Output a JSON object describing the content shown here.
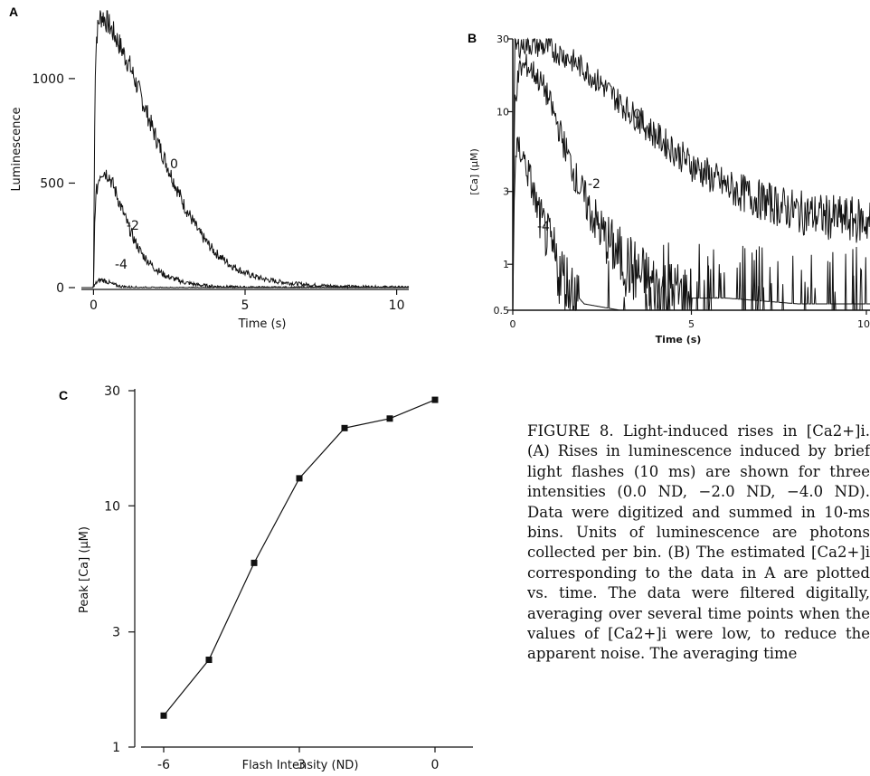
{
  "figure": {
    "caption": "FIGURE 8. Light-induced rises in [Ca2+]i. (A) Rises in luminescence induced by brief light flashes (10 ms) are shown for three intensities (0.0 ND, −2.0 ND, −4.0 ND). Data were digitized and summed in 10-ms bins. Units of luminescence are photons collected per bin. (B) The estimated [Ca2+]i corresponding to the data in A are plotted vs. time. The data were filtered digitally, averaging over several time points when the values of [Ca2+]i were low, to reduce the apparent noise. The averaging time"
  },
  "chart_data": [
    {
      "panel": "A",
      "type": "line",
      "xlabel": "Time (s)",
      "ylabel": "Luminescence",
      "xlim": [
        -0.4,
        10.4
      ],
      "ylim": [
        0,
        1350
      ],
      "xticks": [
        0,
        5,
        10
      ],
      "yticks": [
        0,
        500,
        1000
      ],
      "grid": false,
      "legend": "none",
      "series": [
        {
          "label": "0",
          "x": [
            0,
            0.05,
            0.1,
            0.2,
            0.3,
            0.5,
            0.8,
            1.2,
            1.6,
            2.0,
            2.5,
            3.0,
            3.5,
            4.0,
            4.5,
            5.0,
            5.5,
            6.0,
            7.0,
            8.0,
            9.0,
            10.4
          ],
          "y": [
            10,
            1000,
            1200,
            1290,
            1300,
            1260,
            1180,
            1060,
            900,
            740,
            560,
            390,
            260,
            170,
            110,
            70,
            45,
            30,
            14,
            7,
            4,
            2
          ]
        },
        {
          "label": "-2",
          "x": [
            0,
            0.05,
            0.1,
            0.2,
            0.3,
            0.5,
            0.7,
            1.0,
            1.3,
            1.6,
            2.0,
            2.4,
            3.0,
            3.5,
            4.0,
            5.0,
            6.0,
            8.0,
            10.4
          ],
          "y": [
            5,
            380,
            460,
            540,
            560,
            540,
            470,
            350,
            240,
            160,
            95,
            55,
            25,
            12,
            6,
            2,
            1,
            0,
            0
          ]
        },
        {
          "label": "-4",
          "x": [
            0,
            0.1,
            0.25,
            0.4,
            0.6,
            0.8,
            1.0,
            1.5,
            2.0,
            10.4
          ],
          "y": [
            2,
            25,
            38,
            32,
            18,
            9,
            4,
            1,
            0,
            0
          ]
        }
      ]
    },
    {
      "panel": "B",
      "type": "line",
      "xlabel": "Time (s)",
      "ylabel": "[Ca] (μM)",
      "xlim": [
        0,
        10
      ],
      "ylim": [
        0.5,
        30
      ],
      "yscale": "log",
      "xticks": [
        0,
        5,
        10
      ],
      "xtick_labels": [
        "0",
        "5",
        "10"
      ],
      "yticks": [
        0.5,
        1,
        3,
        10,
        30
      ],
      "ytick_labels": [
        "0.5",
        "1",
        "3",
        "10",
        "30"
      ],
      "grid": false,
      "legend": "none",
      "series": [
        {
          "label": "0",
          "x": [
            0,
            0.05,
            0.3,
            0.6,
            1.0,
            1.5,
            2.0,
            2.5,
            3.0,
            3.5,
            4.0,
            5.0,
            6.0,
            7.0,
            8.0,
            9.0,
            10.0
          ],
          "y": [
            0.5,
            26,
            28,
            27.5,
            26,
            23,
            19,
            15,
            11.5,
            9,
            7,
            4.5,
            3.2,
            2.6,
            2.2,
            2.0,
            1.9
          ]
        },
        {
          "label": "-2",
          "x": [
            0,
            0.05,
            0.2,
            0.4,
            0.6,
            0.9,
            1.2,
            1.5,
            1.8,
            2.1,
            2.5,
            3.0,
            3.5,
            4.0,
            5.0,
            6.0,
            8.0,
            10.0
          ],
          "y": [
            0.5,
            12,
            19,
            20,
            18,
            14,
            9,
            5.5,
            3.5,
            2.4,
            1.6,
            1.1,
            0.85,
            0.7,
            0.6,
            0.6,
            0.55,
            0.55
          ]
        },
        {
          "label": "-4",
          "x": [
            0,
            0.05,
            0.15,
            0.3,
            0.5,
            0.7,
            1.0,
            1.3,
            1.6,
            2.0,
            3.0,
            5.0,
            10.0
          ],
          "y": [
            0.5,
            4,
            6,
            5,
            3.5,
            2.2,
            1.4,
            0.9,
            0.7,
            0.55,
            0.5,
            0.5,
            0.5
          ]
        }
      ]
    },
    {
      "panel": "C",
      "type": "line",
      "markers": "square",
      "xlabel": "Flash Intensity (ND)",
      "ylabel": "Peak [Ca] (μM)",
      "xlim": [
        -7,
        0.4
      ],
      "ylim": [
        1,
        30
      ],
      "yscale": "log",
      "xticks": [
        -6,
        -3,
        0
      ],
      "yticks": [
        1,
        3,
        10,
        30
      ],
      "grid": false,
      "legend": "none",
      "x": [
        -6,
        -5,
        -4,
        -3,
        -2,
        -1,
        0
      ],
      "y": [
        1.35,
        2.3,
        5.8,
        13,
        21,
        23,
        27.5
      ]
    }
  ]
}
